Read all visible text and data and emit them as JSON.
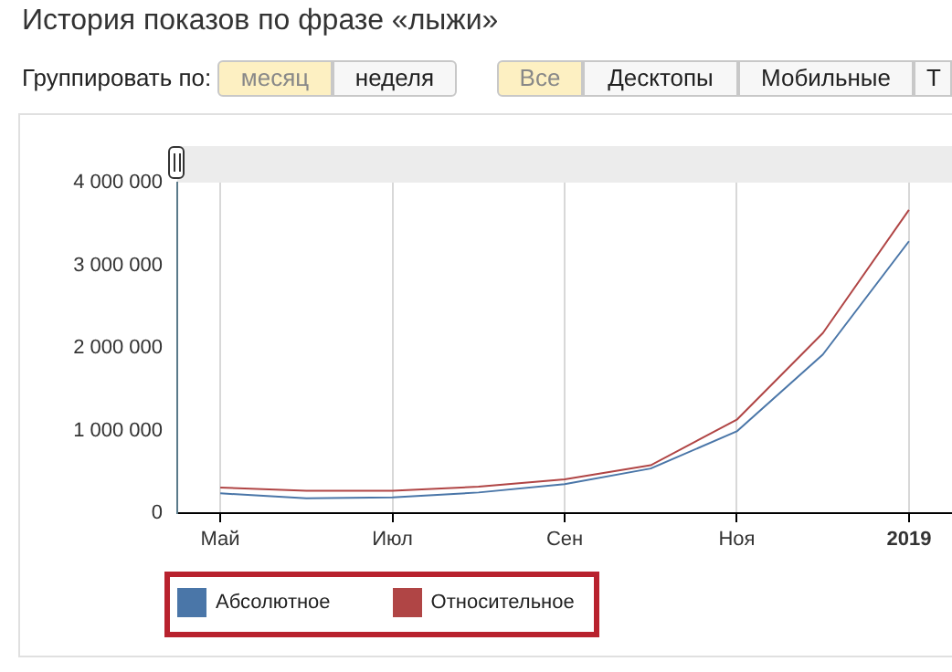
{
  "chart_data": {
    "type": "line",
    "title": "История показов по фразе «лыжи»",
    "annotations": [
      "Группировать по:",
      "месяц",
      "неделя",
      "Все",
      "Десктопы",
      "Мобильные",
      "Т"
    ],
    "categories": [
      "Май",
      null,
      "Июл",
      null,
      "Сен",
      null,
      "Ноя",
      null,
      "2019"
    ],
    "series": [
      {
        "name": "Абсолютное",
        "color": "#4a76a8",
        "values": [
          240000,
          180000,
          190000,
          250000,
          350000,
          540000,
          990000,
          1920000,
          3290000
        ]
      },
      {
        "name": "Относительное",
        "color": "#b04545",
        "values": [
          310000,
          270000,
          270000,
          320000,
          410000,
          580000,
          1130000,
          2180000,
          3670000
        ]
      }
    ],
    "ylim": [
      0,
      4000000
    ],
    "yticks": [
      {
        "value": 0,
        "label": "0"
      },
      {
        "value": 1000000,
        "label": "1 000 000"
      },
      {
        "value": 2000000,
        "label": "2 000 000"
      },
      {
        "value": 3000000,
        "label": "3 000 000"
      },
      {
        "value": 4000000,
        "label": "4 000 000"
      }
    ],
    "grid": "x",
    "legend": "bottom left",
    "line_style": "solid"
  }
}
